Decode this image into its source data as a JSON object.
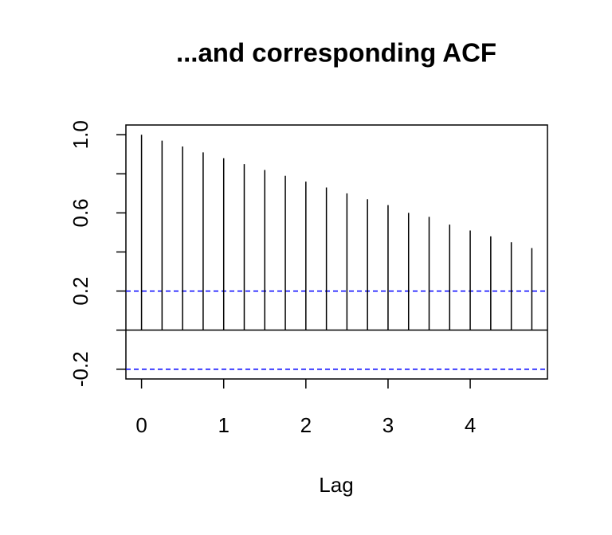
{
  "chart_data": {
    "type": "stem",
    "title": "...and corresponding ACF",
    "x_label": "Lag",
    "x": [
      0,
      0.25,
      0.5,
      0.75,
      1,
      1.25,
      1.5,
      1.75,
      2,
      2.25,
      2.5,
      2.75,
      3,
      3.25,
      3.5,
      3.75,
      4,
      4.25,
      4.5,
      4.75
    ],
    "values": [
      1,
      0.97,
      0.94,
      0.91,
      0.88,
      0.85,
      0.82,
      0.79,
      0.76,
      0.73,
      0.7,
      0.67,
      0.64,
      0.6,
      0.58,
      0.54,
      0.51,
      0.48,
      0.45,
      0.42
    ],
    "color": "#000000",
    "xlim": [
      -0.19,
      4.94
    ],
    "ylim": [
      -0.25,
      1.05
    ],
    "xticks": [
      0,
      1,
      2,
      3,
      4
    ],
    "yticks": [
      -0.2,
      0.2,
      0.6,
      {
        "value": 1,
        "label": "1.0"
      }
    ],
    "yticks_minor": [
      0,
      0.4,
      0.8
    ],
    "ci_lines": [
      0.2,
      -0.2
    ],
    "ci_color": "#0000ff"
  }
}
